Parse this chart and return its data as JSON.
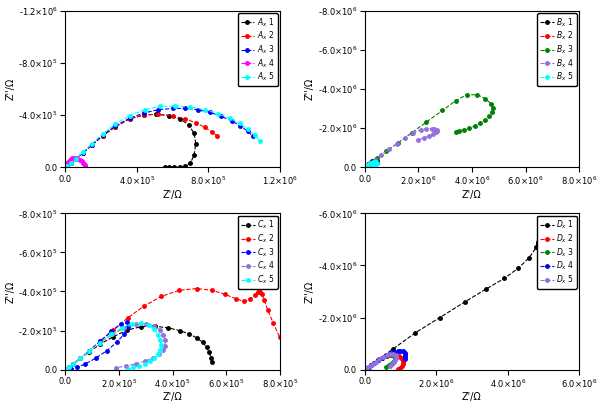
{
  "plots": [
    {
      "label_prefix": "A",
      "xlim": [
        0,
        1200000.0
      ],
      "ylim": [
        -1200000.0,
        0
      ],
      "yticks": [
        -1200000.0,
        -800000.0,
        -400000.0,
        0
      ],
      "xticks": [
        0,
        400000.0,
        800000.0,
        1200000.0
      ],
      "xlabel": "Z'/Ω",
      "ylabel": "Z''/Ω",
      "series_colors": [
        "black",
        "red",
        "blue",
        "magenta",
        "cyan"
      ],
      "series": [
        {
          "x": [
            0,
            10000,
            30000,
            60000,
            100000,
            150000,
            210000,
            280000,
            360000,
            440000,
            510000,
            580000,
            640000,
            690000,
            720000,
            730000,
            720000,
            700000,
            670000,
            640000,
            610000,
            580000,
            560000
          ],
          "y": [
            0,
            -10000,
            -30000,
            -65000,
            -110000,
            -170000,
            -240000,
            -310000,
            -370000,
            -400000,
            -405000,
            -395000,
            -370000,
            -325000,
            -260000,
            -180000,
            -90000,
            -30000,
            -5000,
            0,
            0,
            0,
            0
          ]
        },
        {
          "x": [
            0,
            10000,
            30000,
            60000,
            100000,
            150000,
            210000,
            280000,
            360000,
            440000,
            520000,
            600000,
            670000,
            730000,
            780000,
            820000,
            850000
          ],
          "y": [
            0,
            -10000,
            -30000,
            -65000,
            -110000,
            -170000,
            -240000,
            -310000,
            -370000,
            -400000,
            -405000,
            -395000,
            -370000,
            -340000,
            -305000,
            -270000,
            -240000
          ]
        },
        {
          "x": [
            0,
            10000,
            30000,
            60000,
            100000,
            150000,
            210000,
            280000,
            360000,
            440000,
            520000,
            600000,
            670000,
            740000,
            810000,
            870000,
            930000,
            980000,
            1020000,
            1050000
          ],
          "y": [
            0,
            -10000,
            -30000,
            -65000,
            -110000,
            -170000,
            -245000,
            -315000,
            -375000,
            -415000,
            -440000,
            -450000,
            -450000,
            -440000,
            -420000,
            -390000,
            -355000,
            -315000,
            -275000,
            -235000
          ]
        },
        {
          "x": [
            0,
            5000,
            10000,
            17000,
            26000,
            38000,
            52000,
            68000,
            82000,
            93000,
            100000,
            105000,
            108000,
            110000,
            111000,
            110000,
            108000
          ],
          "y": [
            0,
            -10000,
            -22000,
            -38000,
            -55000,
            -68000,
            -72000,
            -67000,
            -57000,
            -44000,
            -32000,
            -22000,
            -14000,
            -8000,
            -4000,
            -1500,
            -500
          ]
        },
        {
          "x": [
            0,
            10000,
            30000,
            60000,
            100000,
            150000,
            210000,
            280000,
            360000,
            445000,
            530000,
            615000,
            700000,
            780000,
            855000,
            920000,
            975000,
            1020000,
            1060000,
            1090000
          ],
          "y": [
            0,
            -10000,
            -30000,
            -65000,
            -115000,
            -180000,
            -255000,
            -330000,
            -395000,
            -440000,
            -465000,
            -470000,
            -460000,
            -440000,
            -410000,
            -375000,
            -335000,
            -290000,
            -245000,
            -200000
          ]
        }
      ]
    },
    {
      "label_prefix": "B",
      "xlim": [
        0,
        8000000.0
      ],
      "ylim": [
        -8000000.0,
        0
      ],
      "yticks": [
        -8000000.0,
        -6000000.0,
        -4000000.0,
        -2000000.0,
        0
      ],
      "xticks": [
        0,
        2000000.0,
        4000000.0,
        6000000.0,
        8000000.0
      ],
      "xlabel": "Z'/Ω",
      "ylabel": "Z''/Ω",
      "series_colors": [
        "black",
        "red",
        "green",
        "mediumpurple",
        "cyan"
      ],
      "series": [
        {
          "x": [
            0,
            15000,
            40000,
            80000,
            140000,
            210000,
            290000,
            370000,
            430000,
            460000,
            460000,
            440000,
            410000,
            380000,
            350000,
            320000,
            290000
          ],
          "y": [
            0,
            -15000,
            -40000,
            -80000,
            -140000,
            -210000,
            -285000,
            -330000,
            -340000,
            -315000,
            -270000,
            -225000,
            -185000,
            -150000,
            -120000,
            -95000,
            -75000
          ]
        },
        {
          "x": [
            0,
            5000,
            12000,
            22000,
            36000,
            53000,
            72000,
            90000,
            105000,
            112000,
            112000,
            105000,
            93000,
            78000
          ],
          "y": [
            0,
            -5000,
            -12000,
            -22000,
            -35000,
            -50000,
            -60000,
            -62000,
            -55000,
            -42000,
            -28000,
            -17000,
            -9000,
            -4000
          ]
        },
        {
          "x": [
            0,
            60000,
            200000,
            450000,
            800000,
            1250000,
            1750000,
            2300000,
            2900000,
            3400000,
            3800000,
            4200000,
            4500000,
            4700000,
            4800000,
            4750000,
            4650000,
            4500000,
            4300000,
            4100000,
            3900000,
            3700000,
            3500000,
            3400000
          ],
          "y": [
            0,
            -60000,
            -200000,
            -450000,
            -800000,
            -1250000,
            -1750000,
            -2300000,
            -2900000,
            -3400000,
            -3700000,
            -3700000,
            -3500000,
            -3250000,
            -3000000,
            -2800000,
            -2600000,
            -2400000,
            -2250000,
            -2100000,
            -2000000,
            -1900000,
            -1850000,
            -1800000
          ]
        },
        {
          "x": [
            0,
            30000,
            90000,
            200000,
            380000,
            620000,
            900000,
            1200000,
            1500000,
            1800000,
            2100000,
            2300000,
            2500000,
            2600000,
            2700000,
            2700000,
            2650000,
            2550000,
            2400000,
            2200000,
            2000000
          ],
          "y": [
            0,
            -30000,
            -90000,
            -200000,
            -380000,
            -620000,
            -900000,
            -1200000,
            -1500000,
            -1750000,
            -1920000,
            -1970000,
            -1960000,
            -1940000,
            -1900000,
            -1840000,
            -1780000,
            -1700000,
            -1600000,
            -1490000,
            -1380000
          ]
        },
        {
          "x": [
            0,
            15000,
            45000,
            95000,
            165000,
            245000,
            325000,
            390000,
            430000,
            440000,
            415000,
            370000,
            315000
          ],
          "y": [
            0,
            -15000,
            -45000,
            -95000,
            -160000,
            -225000,
            -265000,
            -270000,
            -240000,
            -185000,
            -130000,
            -82000,
            -45000
          ]
        }
      ]
    },
    {
      "label_prefix": "C",
      "xlim": [
        0,
        800000.0
      ],
      "ylim": [
        -800000.0,
        0
      ],
      "yticks": [
        -800000.0,
        -600000.0,
        -400000.0,
        -200000.0,
        0
      ],
      "xticks": [
        0,
        200000.0,
        400000.0,
        600000.0,
        800000.0
      ],
      "xlabel": "Z'/Ω",
      "ylabel": "Z''/Ω",
      "series_colors": [
        "black",
        "red",
        "blue",
        "mediumpurple",
        "cyan"
      ],
      "series": [
        {
          "x": [
            0,
            5000,
            15000,
            30000,
            55000,
            88000,
            130000,
            178000,
            230000,
            283000,
            335000,
            383000,
            426000,
            462000,
            490000,
            512000,
            527000,
            537000,
            543000,
            546000
          ],
          "y": [
            0,
            -5000,
            -15000,
            -30000,
            -57000,
            -90000,
            -130000,
            -168000,
            -202000,
            -220000,
            -222000,
            -214000,
            -200000,
            -183000,
            -163000,
            -140000,
            -115000,
            -88000,
            -62000,
            -38000
          ]
        },
        {
          "x": [
            0,
            5000,
            15000,
            30000,
            55000,
            88000,
            130000,
            178000,
            233000,
            293000,
            358000,
            425000,
            490000,
            548000,
            597000,
            636000,
            666000,
            689000,
            706000,
            718000,
            727000,
            734000,
            742000,
            755000,
            775000,
            800000
          ],
          "y": [
            0,
            -5000,
            -15000,
            -30000,
            -57000,
            -95000,
            -145000,
            -202000,
            -265000,
            -325000,
            -375000,
            -406000,
            -415000,
            -406000,
            -385000,
            -363000,
            -350000,
            -360000,
            -380000,
            -398000,
            -398000,
            -385000,
            -355000,
            -305000,
            -240000,
            -165000
          ]
        },
        {
          "x": [
            0,
            5000,
            15000,
            30000,
            55000,
            88000,
            130000,
            172000,
            207000,
            230000,
            235000,
            220000,
            192000,
            155000,
            113000,
            73000,
            42000,
            21000,
            8000
          ],
          "y": [
            0,
            -5000,
            -15000,
            -30000,
            -57000,
            -95000,
            -145000,
            -196000,
            -233000,
            -242000,
            -218000,
            -182000,
            -140000,
            -97000,
            -58000,
            -28000,
            -11000,
            -3000,
            -500
          ]
        },
        {
          "x": [
            0,
            5000,
            15000,
            30000,
            55000,
            88000,
            130000,
            175000,
            220000,
            263000,
            300000,
            330000,
            352000,
            366000,
            372000,
            372000,
            364000,
            349000,
            327000,
            298000,
            265000,
            228000,
            190000
          ],
          "y": [
            0,
            -5000,
            -15000,
            -30000,
            -57000,
            -93000,
            -138000,
            -180000,
            -213000,
            -232000,
            -235000,
            -224000,
            -203000,
            -177000,
            -150000,
            -123000,
            -99000,
            -78000,
            -60000,
            -44000,
            -30000,
            -19000,
            -10000
          ]
        },
        {
          "x": [
            0,
            5000,
            15000,
            30000,
            55000,
            88000,
            130000,
            172000,
            212000,
            250000,
            283000,
            311000,
            332000,
            346000,
            354000,
            357000,
            354000,
            346000,
            332000,
            315000,
            296000,
            275000,
            254000,
            233000
          ],
          "y": [
            0,
            -5000,
            -15000,
            -30000,
            -57000,
            -93000,
            -138000,
            -180000,
            -215000,
            -236000,
            -240000,
            -229000,
            -207000,
            -179000,
            -151000,
            -124000,
            -99000,
            -78000,
            -60000,
            -44000,
            -30000,
            -19000,
            -11000,
            -5000
          ]
        }
      ]
    },
    {
      "label_prefix": "D",
      "xlim": [
        0,
        6000000.0
      ],
      "ylim": [
        -6000000.0,
        0
      ],
      "yticks": [
        -6000000.0,
        -4000000.0,
        -2000000.0,
        0
      ],
      "xticks": [
        0,
        2000000.0,
        4000000.0,
        6000000.0
      ],
      "xlabel": "Z'/Ω",
      "ylabel": "Z''/Ω",
      "series_colors": [
        "black",
        "red",
        "green",
        "blue",
        "mediumpurple"
      ],
      "series": [
        {
          "x": [
            0,
            50000,
            170000,
            400000,
            800000,
            1400000,
            2100000,
            2800000,
            3400000,
            3900000,
            4300000,
            4600000,
            4800000,
            4850000,
            4850000,
            4850000,
            4900000,
            5000000,
            5200000,
            5500000
          ],
          "y": [
            0,
            -50000,
            -170000,
            -400000,
            -800000,
            -1400000,
            -2000000,
            -2600000,
            -3100000,
            -3500000,
            -3900000,
            -4300000,
            -4700000,
            -4900000,
            -4850000,
            -4800000,
            -4850000,
            -4900000,
            -4900000,
            -4800000
          ]
        },
        {
          "x": [
            0,
            10000,
            30000,
            65000,
            115000,
            180000,
            265000,
            370000,
            490000,
            618000,
            745000,
            860000,
            955000,
            1023000,
            1065000,
            1080000,
            1068000,
            1035000,
            987000,
            930000
          ],
          "y": [
            0,
            -10000,
            -30000,
            -65000,
            -115000,
            -180000,
            -262000,
            -355000,
            -443000,
            -512000,
            -550000,
            -550000,
            -510000,
            -448000,
            -370000,
            -285000,
            -200000,
            -128000,
            -70000,
            -28000
          ]
        },
        {
          "x": [
            0,
            10000,
            30000,
            65000,
            115000,
            180000,
            262000,
            363000,
            476000,
            590000,
            695000,
            779000,
            833000,
            848000,
            823000,
            763000,
            680000,
            585000
          ],
          "y": [
            0,
            -10000,
            -30000,
            -65000,
            -115000,
            -180000,
            -260000,
            -355000,
            -446000,
            -520000,
            -560000,
            -557000,
            -508000,
            -430000,
            -340000,
            -255000,
            -178000,
            -115000
          ]
        },
        {
          "x": [
            0,
            10000,
            30000,
            65000,
            115000,
            180000,
            262000,
            363000,
            476000,
            596000,
            715000,
            826000,
            922000,
            1000000,
            1060000,
            1100000,
            1125000,
            1137000,
            1140000,
            1135000,
            1124000
          ],
          "y": [
            0,
            -10000,
            -30000,
            -65000,
            -115000,
            -180000,
            -260000,
            -356000,
            -452000,
            -543000,
            -620000,
            -675000,
            -706000,
            -714000,
            -702000,
            -675000,
            -635000,
            -585000,
            -528000,
            -466000,
            -400000
          ]
        },
        {
          "x": [
            0,
            10000,
            30000,
            60000,
            100000,
            155000,
            225000,
            310000,
            410000,
            515000,
            620000,
            715000,
            790000,
            843000,
            870000,
            873000,
            854000,
            815000,
            760000,
            695000
          ],
          "y": [
            0,
            -10000,
            -30000,
            -60000,
            -100000,
            -155000,
            -225000,
            -310000,
            -405000,
            -492000,
            -560000,
            -598000,
            -601000,
            -573000,
            -520000,
            -450000,
            -372000,
            -292000,
            -215000,
            -145000
          ]
        }
      ]
    }
  ]
}
